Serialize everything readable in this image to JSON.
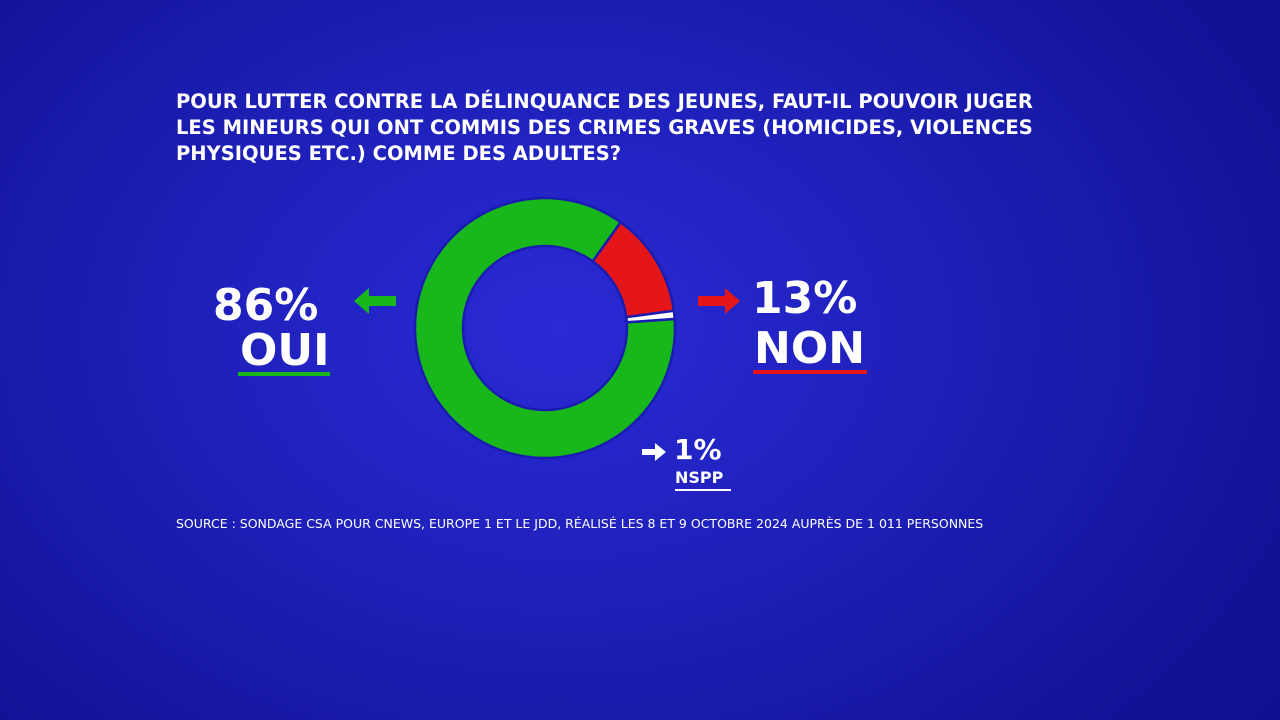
{
  "question": "POUR LUTTER CONTRE LA DÉLINQUANCE DES JEUNES, FAUT-IL POUVOIR JUGER LES MINEURS QUI ONT COMMIS DES CRIMES GRAVES (HOMICIDES, VIOLENCES PHYSIQUES ETC.) COMME DES ADULTES?",
  "source": "SOURCE : SONDAGE CSA POUR CNEWS, EUROPE 1 ET LE JDD, RÉALISÉ LES 8 ET 9 OCTOBRE 2024 AUPRÈS DE 1 011 PERSONNES",
  "colors": {
    "oui": "#18b81c",
    "non": "#e4161a",
    "nspp": "#ffffff",
    "background": "#1d1fb6"
  },
  "icons": {
    "oui": "arrow-left-icon",
    "non": "arrow-right-icon",
    "nspp": "arrow-right-icon"
  },
  "chart_data": {
    "type": "pie",
    "donut": true,
    "title": "",
    "slices": [
      {
        "label": "OUI",
        "value": 86,
        "display": "86%"
      },
      {
        "label": "NON",
        "value": 13,
        "display": "13%"
      },
      {
        "label": "NSPP",
        "value": 1,
        "display": "1%"
      }
    ]
  }
}
